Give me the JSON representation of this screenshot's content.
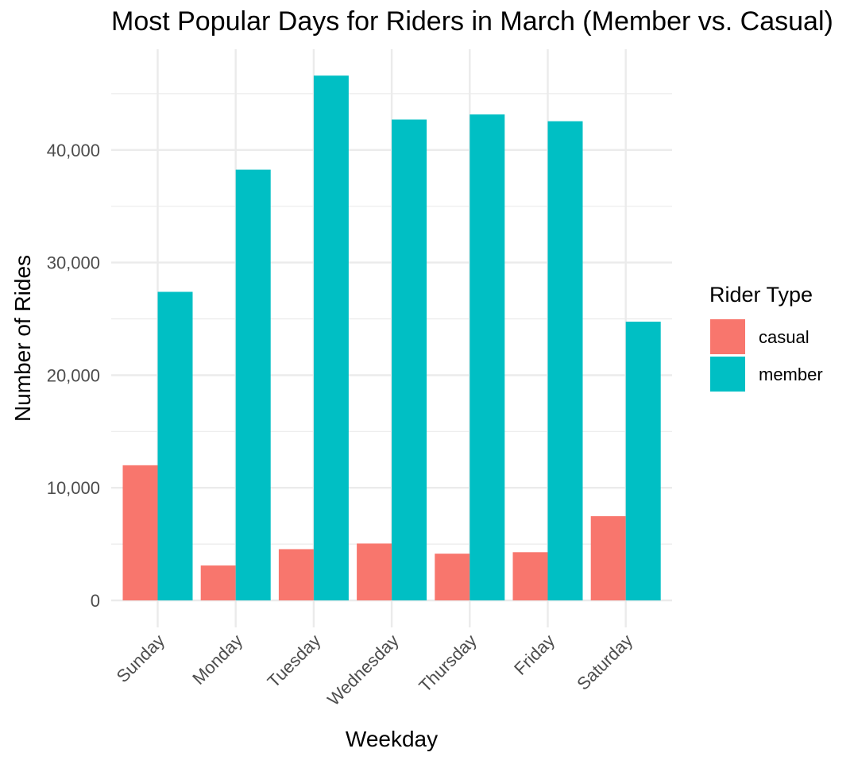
{
  "chart_data": {
    "type": "bar",
    "title": "Most Popular Days for Riders in March (Member vs. Casual)",
    "xlabel": "Weekday",
    "ylabel": "Number of Rides",
    "categories": [
      "Sunday",
      "Monday",
      "Tuesday",
      "Wednesday",
      "Thursday",
      "Friday",
      "Saturday"
    ],
    "series": [
      {
        "name": "casual",
        "color": "#F8766D",
        "values": [
          12000,
          3100,
          4550,
          5050,
          4150,
          4280,
          7480
        ]
      },
      {
        "name": "member",
        "color": "#00BFC4",
        "values": [
          27400,
          38250,
          46600,
          42700,
          43150,
          42550,
          24750
        ]
      }
    ],
    "ylim": [
      0,
      48000
    ],
    "y_ticks": [
      0,
      10000,
      20000,
      30000,
      40000
    ],
    "y_tick_labels": [
      "0",
      "10,000",
      "20,000",
      "30,000",
      "40,000"
    ],
    "grid": true,
    "legend": {
      "title": "Rider Type",
      "position": "right"
    }
  }
}
